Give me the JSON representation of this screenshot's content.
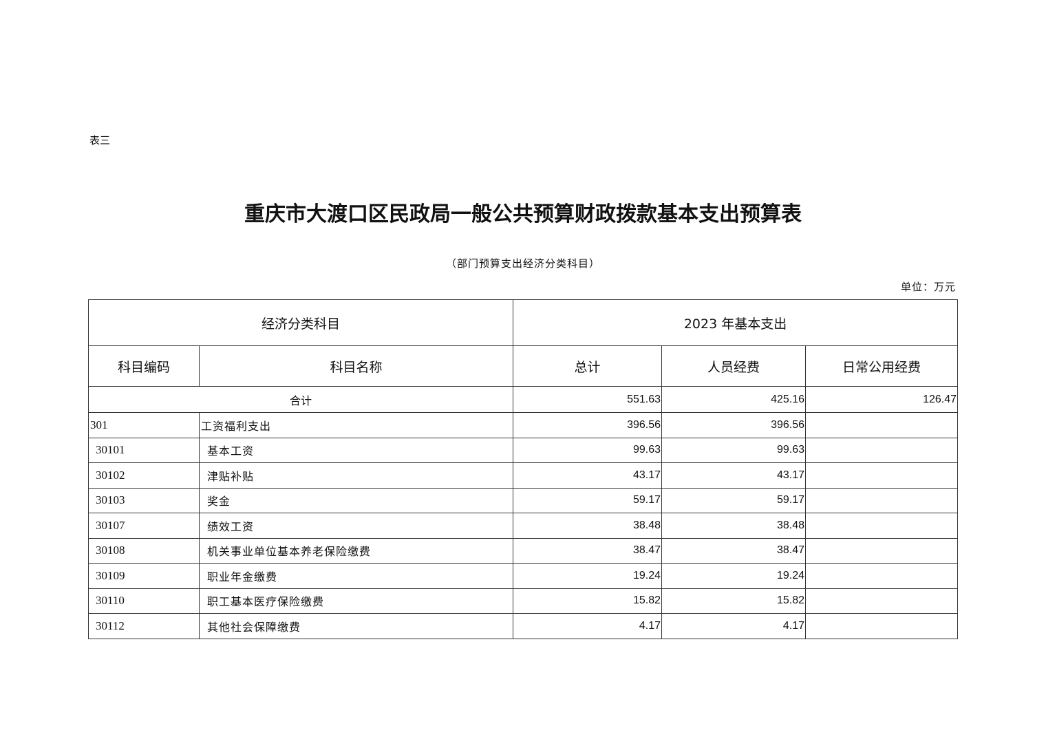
{
  "table_label": "表三",
  "title": "重庆市大渡口区民政局一般公共预算财政拨款基本支出预算表",
  "subtitle": "（部门预算支出经济分类科目）",
  "unit": "单位：万元",
  "table": {
    "group_headers": {
      "economic": "经济分类科目",
      "basic": "2023 年基本支出"
    },
    "columns": {
      "code": "科目编码",
      "name": "科目名称",
      "total": "总计",
      "personnel": "人员经费",
      "public": "日常公用经费"
    },
    "total_row": {
      "label": "合计",
      "total": "551.63",
      "personnel": "425.16",
      "public": "126.47"
    },
    "rows": [
      {
        "code": "301",
        "name": "工资福利支出",
        "total": "396.56",
        "personnel": "396.56",
        "public": "",
        "level": 1
      },
      {
        "code": "30101",
        "name": "基本工资",
        "total": "99.63",
        "personnel": "99.63",
        "public": "",
        "level": 2
      },
      {
        "code": "30102",
        "name": "津贴补贴",
        "total": "43.17",
        "personnel": "43.17",
        "public": "",
        "level": 2
      },
      {
        "code": "30103",
        "name": "奖金",
        "total": "59.17",
        "personnel": "59.17",
        "public": "",
        "level": 2
      },
      {
        "code": "30107",
        "name": "绩效工资",
        "total": "38.48",
        "personnel": "38.48",
        "public": "",
        "level": 2
      },
      {
        "code": "30108",
        "name": "机关事业单位基本养老保险缴费",
        "total": "38.47",
        "personnel": "38.47",
        "public": "",
        "level": 2
      },
      {
        "code": "30109",
        "name": "职业年金缴费",
        "total": "19.24",
        "personnel": "19.24",
        "public": "",
        "level": 2
      },
      {
        "code": "30110",
        "name": "职工基本医疗保险缴费",
        "total": "15.82",
        "personnel": "15.82",
        "public": "",
        "level": 2
      },
      {
        "code": "30112",
        "name": "其他社会保障缴费",
        "total": "4.17",
        "personnel": "4.17",
        "public": "",
        "level": 2
      }
    ]
  }
}
